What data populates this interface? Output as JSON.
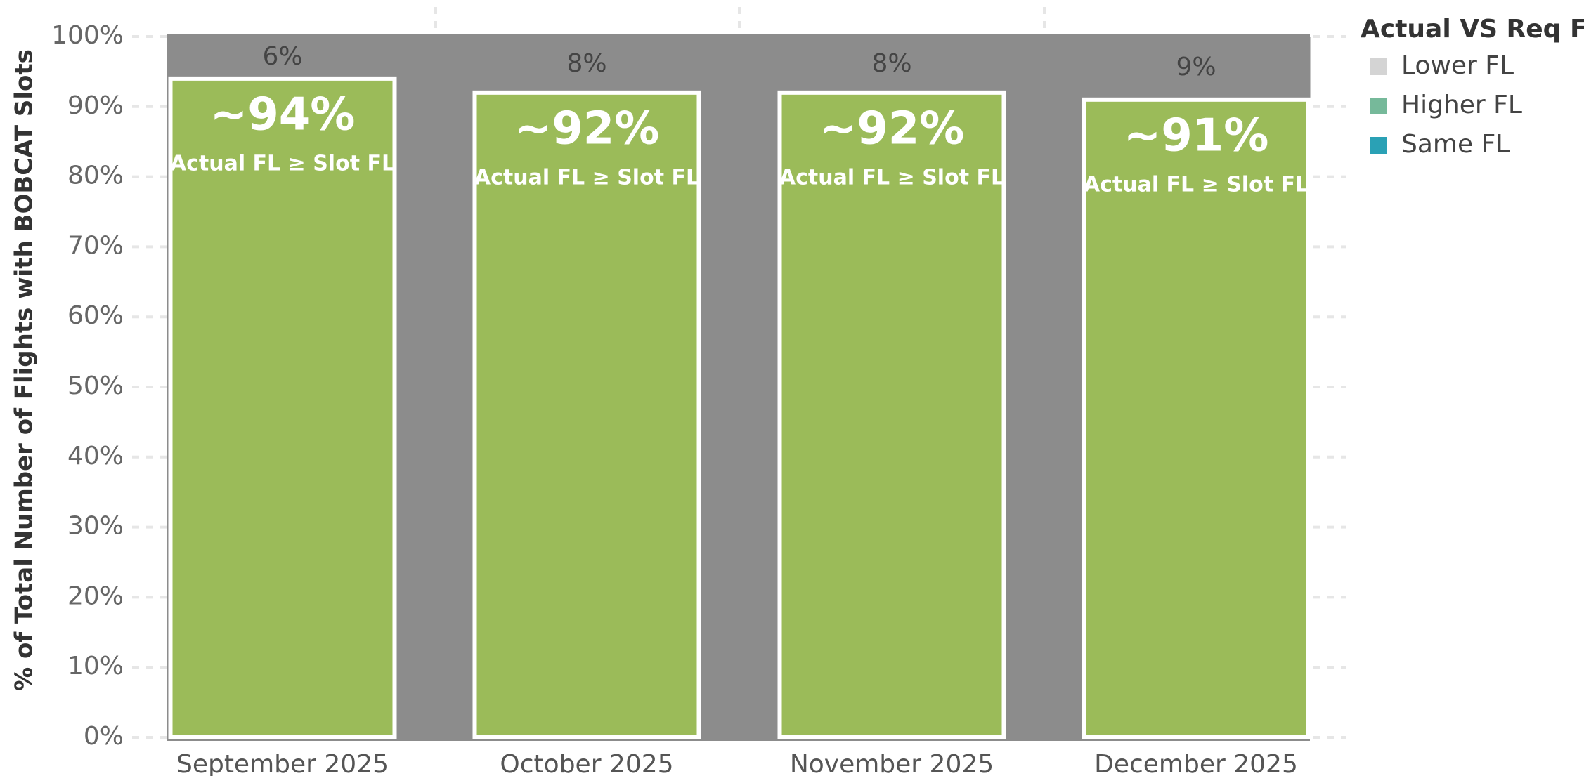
{
  "chart_data": {
    "type": "bar",
    "ylabel": "% of Total Number of Flights with BOBCAT Slots",
    "categories": [
      "September 2025",
      "October 2025",
      "November 2025",
      "December 2025"
    ],
    "series": [
      {
        "name": "Lower FL",
        "color": "#8c8c8c",
        "values": [
          6,
          8,
          8,
          9
        ],
        "value_labels": [
          "6%",
          "8%",
          "8%",
          "9%"
        ]
      }
    ],
    "annotations": [
      {
        "value": 94,
        "label": "~94%",
        "text": "Actual FL ≥ Slot FL"
      },
      {
        "value": 92,
        "label": "~92%",
        "text": "Actual FL ≥ Slot FL"
      },
      {
        "value": 92,
        "label": "~92%",
        "text": "Actual FL ≥ Slot FL"
      },
      {
        "value": 91,
        "label": "~91%",
        "text": "Actual FL ≥ Slot FL"
      }
    ],
    "annotation_color": "#9bbb59",
    "legend": {
      "title": "Actual VS Req FL",
      "items": [
        {
          "name": "Lower FL",
          "color": "#d4d4d4"
        },
        {
          "name": "Higher FL",
          "color": "#76b99a"
        },
        {
          "name": "Same FL",
          "color": "#2aa1b5"
        }
      ]
    },
    "ylim": [
      0,
      100
    ],
    "yticks": [
      {
        "value": 0,
        "label": "0%"
      },
      {
        "value": 10,
        "label": "10%"
      },
      {
        "value": 20,
        "label": "20%"
      },
      {
        "value": 30,
        "label": "30%"
      },
      {
        "value": 40,
        "label": "40%"
      },
      {
        "value": 50,
        "label": "50%"
      },
      {
        "value": 60,
        "label": "60%"
      },
      {
        "value": 70,
        "label": "70%"
      },
      {
        "value": 80,
        "label": "80%"
      },
      {
        "value": 90,
        "label": "90%"
      },
      {
        "value": 100,
        "label": "100%"
      }
    ],
    "grid": true
  }
}
